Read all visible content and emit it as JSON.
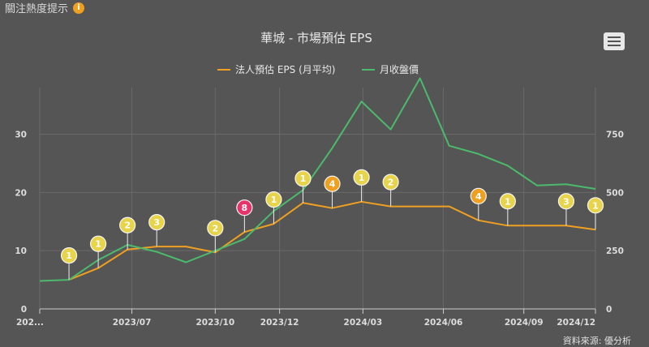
{
  "header": {
    "hint_label": "關注熱度提示",
    "hint_icon": "info-icon"
  },
  "menu": {
    "icon": "hamburger-menu-icon"
  },
  "source_label": "資料來源: 優分析",
  "colors": {
    "eps": "#f0a020",
    "revenue": "#4cba6c",
    "grid": "#6a6a6a",
    "badge_yellow": "#e8d44a",
    "badge_orange": "#f0a020",
    "badge_pink": "#e8336a"
  },
  "chart_data": {
    "type": "line",
    "title": "華城 - 市場預估 EPS",
    "legend": [
      "法人預估 EPS (月平均)",
      "月收盤價"
    ],
    "legend_position": "top",
    "x_ticks": [
      "202...",
      "2023/07",
      "2023/10",
      "2023/12",
      "2024/03",
      "2024/06",
      "2024/09",
      "2024/12"
    ],
    "y_left_ticks": [
      "0",
      "10",
      "20",
      "30"
    ],
    "y_right_ticks": [
      "0",
      "250",
      "500",
      "750"
    ],
    "y_left_range": [
      0,
      38
    ],
    "y_right_range": [
      0,
      950
    ],
    "grid": true,
    "series": [
      {
        "name": "法人預估 EPS (月平均)",
        "axis": "left",
        "points": [
          [
            1,
            5.0
          ],
          [
            2,
            7.0
          ],
          [
            3,
            10.2
          ],
          [
            4,
            10.7
          ],
          [
            5,
            10.7
          ],
          [
            6,
            9.7
          ],
          [
            7,
            13.2
          ],
          [
            8,
            14.6
          ],
          [
            9,
            18.2
          ],
          [
            10,
            17.3
          ],
          [
            11,
            18.4
          ],
          [
            12,
            17.6
          ],
          [
            13,
            17.6
          ],
          [
            14,
            17.6
          ],
          [
            15,
            15.2
          ],
          [
            16,
            14.3
          ],
          [
            17,
            14.3
          ],
          [
            18,
            14.3
          ],
          [
            19,
            13.6
          ]
        ]
      },
      {
        "name": "月收盤價",
        "axis": "right",
        "points": [
          [
            0,
            120
          ],
          [
            1,
            125
          ],
          [
            2,
            210
          ],
          [
            3,
            275
          ],
          [
            4,
            245
          ],
          [
            5,
            200
          ],
          [
            6,
            250
          ],
          [
            7,
            300
          ],
          [
            8,
            420
          ],
          [
            9,
            510
          ],
          [
            10,
            690
          ],
          [
            11,
            890
          ],
          [
            12,
            770
          ],
          [
            13,
            990
          ],
          [
            14,
            700
          ],
          [
            15,
            665
          ],
          [
            16,
            615
          ],
          [
            17,
            530
          ],
          [
            18,
            535
          ],
          [
            19,
            515
          ]
        ]
      }
    ],
    "badges": [
      {
        "x": 1,
        "eps": 5.0,
        "count": "1",
        "color": "yellow"
      },
      {
        "x": 2,
        "eps": 7.0,
        "count": "1",
        "color": "yellow"
      },
      {
        "x": 3,
        "eps": 10.2,
        "count": "2",
        "color": "yellow"
      },
      {
        "x": 4,
        "eps": 10.7,
        "count": "3",
        "color": "yellow"
      },
      {
        "x": 6,
        "eps": 9.7,
        "count": "2",
        "color": "yellow"
      },
      {
        "x": 7,
        "eps": 13.2,
        "count": "8",
        "color": "pink"
      },
      {
        "x": 8,
        "eps": 14.6,
        "count": "1",
        "color": "yellow"
      },
      {
        "x": 9,
        "eps": 18.2,
        "count": "1",
        "color": "yellow"
      },
      {
        "x": 10,
        "eps": 17.3,
        "count": "4",
        "color": "orange"
      },
      {
        "x": 11,
        "eps": 18.4,
        "count": "1",
        "color": "yellow"
      },
      {
        "x": 12,
        "eps": 17.6,
        "count": "2",
        "color": "yellow"
      },
      {
        "x": 15,
        "eps": 15.2,
        "count": "4",
        "color": "orange"
      },
      {
        "x": 16,
        "eps": 14.3,
        "count": "1",
        "color": "yellow"
      },
      {
        "x": 18,
        "eps": 14.3,
        "count": "3",
        "color": "yellow"
      },
      {
        "x": 19,
        "eps": 13.6,
        "count": "1",
        "color": "yellow"
      }
    ]
  }
}
